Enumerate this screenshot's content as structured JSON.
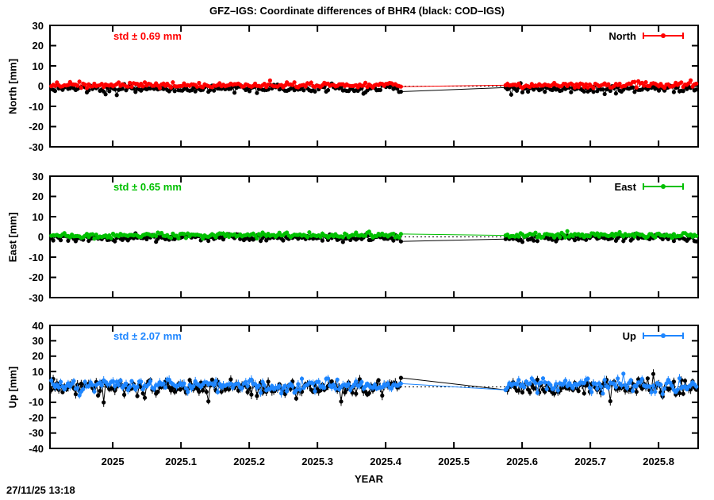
{
  "timestamp": "27/11/25 13:18",
  "chart_data": {
    "type": "scatter",
    "title": "GFZ–IGS: Coordinate differences of BHR4 (black: COD–IGS)",
    "xlabel": "YEAR",
    "x_range": [
      2024.908,
      2025.858
    ],
    "x_ticks": [
      {
        "value": 2025.0,
        "label": "2025"
      },
      {
        "value": 2025.1,
        "label": "2025.1"
      },
      {
        "value": 2025.2,
        "label": "2025.2"
      },
      {
        "value": 2025.3,
        "label": "2025.3"
      },
      {
        "value": 2025.4,
        "label": "2025.4"
      },
      {
        "value": 2025.5,
        "label": "2025.5"
      },
      {
        "value": 2025.6,
        "label": "2025.6"
      },
      {
        "value": 2025.7,
        "label": "2025.7"
      },
      {
        "value": 2025.8,
        "label": "2025.8"
      }
    ],
    "sampling": {
      "start": 2024.91,
      "end": 2025.856,
      "step": 0.00274,
      "gap": [
        2025.425,
        2025.575
      ],
      "seed": 20251127
    },
    "grid": false,
    "legend_position": "top-right-inside",
    "panels": [
      {
        "name": "north",
        "ylabel": "North [mm]",
        "ylim": [
          -30,
          30
        ],
        "ytick_step": 10,
        "std_label": "std ± 0.69 mm",
        "legend_label": "North",
        "accent": "#ff0000",
        "series": [
          {
            "name": "COD-IGS",
            "color": "#000000",
            "mean": -1.4,
            "std": 0.95,
            "ebar": 0.8
          },
          {
            "name": "GFZ-IGS",
            "color": "#ff0000",
            "mean": 0.5,
            "std": 0.69,
            "ebar": 0.8
          }
        ]
      },
      {
        "name": "east",
        "ylabel": "East [mm]",
        "ylim": [
          -30,
          30
        ],
        "ytick_step": 10,
        "std_label": "std ± 0.65 mm",
        "legend_label": "East",
        "accent": "#00c000",
        "series": [
          {
            "name": "COD-IGS",
            "color": "#000000",
            "mean": -0.5,
            "std": 0.9,
            "ebar": 0.8
          },
          {
            "name": "GFZ-IGS",
            "color": "#00c000",
            "mean": 0.8,
            "std": 0.65,
            "ebar": 0.8
          }
        ]
      },
      {
        "name": "up",
        "ylabel": "Up [mm]",
        "ylim": [
          -40,
          40
        ],
        "ytick_step": 10,
        "std_label": "std ± 2.07 mm",
        "legend_label": "Up",
        "accent": "#1e86ff",
        "series": [
          {
            "name": "COD-IGS",
            "color": "#000000",
            "mean": -0.4,
            "std": 2.6,
            "ebar": 2.2,
            "out_p": 0.045,
            "out_lo": -10,
            "out_hi": 3
          },
          {
            "name": "GFZ-IGS",
            "color": "#1e86ff",
            "mean": 1.2,
            "std": 2.07,
            "ebar": 2.0,
            "out_p": 0.03,
            "out_lo": -5,
            "out_hi": 8
          }
        ]
      }
    ]
  }
}
